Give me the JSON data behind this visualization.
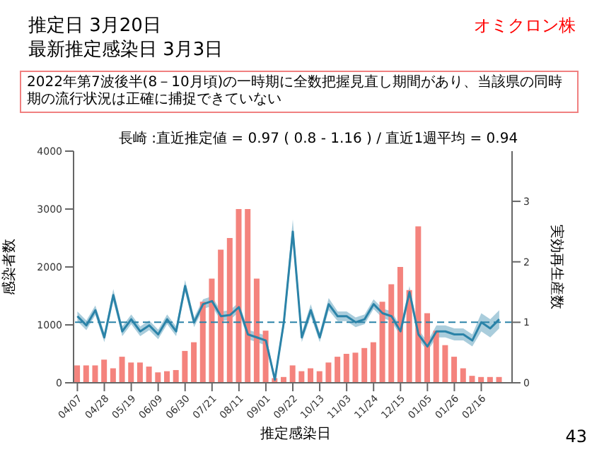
{
  "chart_data": {
    "type": "bar",
    "title": "推定日  3月20日",
    "subtitle": "最新推定感染日  3月3日",
    "annotations": [
      "オミクロン株",
      "2022年第7波後半(8－10月頃)の一時期に全数把握見直し期間があり、当該県の同時期の流行状況は正確に捕捉できていない",
      "長崎 :直近推定値 = 0.97 ( 0.8 - 1.16 ) / 直近1週平均 = 0.94",
      "43"
    ],
    "xlabel": "推定感染日",
    "ylabel": "感染者数",
    "y2label": "実効再生産数",
    "x": [
      "2022-04-07",
      "2022-04-14",
      "2022-04-21",
      "2022-04-28",
      "2022-05-05",
      "2022-05-12",
      "2022-05-19",
      "2022-05-26",
      "2022-06-02",
      "2022-06-09",
      "2022-06-16",
      "2022-06-23",
      "2022-06-30",
      "2022-07-07",
      "2022-07-14",
      "2022-07-21",
      "2022-07-28",
      "2022-08-04",
      "2022-08-11",
      "2022-08-18",
      "2022-08-25",
      "2022-09-01",
      "2022-09-08",
      "2022-09-15",
      "2022-09-22",
      "2022-09-29",
      "2022-10-06",
      "2022-10-13",
      "2022-10-20",
      "2022-10-27",
      "2022-11-03",
      "2022-11-10",
      "2022-11-17",
      "2022-11-24",
      "2022-12-01",
      "2022-12-08",
      "2022-12-15",
      "2022-12-22",
      "2022-12-29",
      "2023-01-05",
      "2023-01-12",
      "2023-01-19",
      "2023-01-26",
      "2023-02-02",
      "2023-02-09",
      "2023-02-16",
      "2023-02-23",
      "2023-03-02"
    ],
    "series": [
      {
        "color": "#f4837d",
        "values": [
          300,
          300,
          300,
          400,
          250,
          450,
          350,
          350,
          280,
          180,
          200,
          220,
          550,
          700,
          1400,
          1800,
          2300,
          2500,
          3000,
          3000,
          1800,
          900,
          80,
          100,
          300,
          200,
          250,
          200,
          350,
          450,
          500,
          520,
          600,
          700,
          1400,
          1700,
          2000,
          1600,
          2700,
          1200,
          900,
          650,
          450,
          250,
          120,
          100,
          100,
          100
        ]
      },
      {
        "type": "line",
        "axis": "y2",
        "color": "#2b83a8",
        "values": [
          1.1,
          0.95,
          1.2,
          0.75,
          1.45,
          0.85,
          1.05,
          0.85,
          0.95,
          0.8,
          1.05,
          0.85,
          1.6,
          1.0,
          1.3,
          1.35,
          1.1,
          1.12,
          1.25,
          0.8,
          0.75,
          0.7,
          0.05,
          1.0,
          2.5,
          0.75,
          1.2,
          0.75,
          1.3,
          1.1,
          1.1,
          1.0,
          1.05,
          1.3,
          1.15,
          1.1,
          0.85,
          1.5,
          0.8,
          0.6,
          0.85,
          0.85,
          0.8,
          0.8,
          0.7,
          1.0,
          0.9,
          1.05
        ],
        "lower": [
          1.02,
          0.87,
          1.12,
          0.67,
          1.35,
          0.77,
          0.97,
          0.77,
          0.87,
          0.72,
          0.97,
          0.77,
          1.5,
          0.92,
          1.22,
          1.27,
          1.02,
          1.04,
          1.17,
          0.72,
          0.67,
          0.62,
          0.01,
          0.9,
          2.3,
          0.67,
          1.1,
          0.67,
          1.2,
          1.02,
          1.02,
          0.92,
          0.97,
          1.22,
          1.07,
          1.02,
          0.77,
          1.4,
          0.72,
          0.52,
          0.75,
          0.75,
          0.7,
          0.7,
          0.6,
          0.85,
          0.75,
          0.9
        ],
        "upper": [
          1.18,
          1.03,
          1.28,
          0.83,
          1.55,
          0.93,
          1.13,
          0.93,
          1.03,
          0.88,
          1.13,
          0.93,
          1.7,
          1.08,
          1.38,
          1.43,
          1.18,
          1.2,
          1.33,
          0.88,
          0.83,
          0.78,
          0.12,
          1.1,
          2.7,
          0.83,
          1.3,
          0.83,
          1.4,
          1.18,
          1.18,
          1.08,
          1.13,
          1.38,
          1.23,
          1.18,
          0.93,
          1.6,
          0.88,
          0.68,
          0.95,
          0.95,
          0.9,
          0.9,
          0.8,
          1.15,
          1.05,
          1.2
        ]
      }
    ],
    "xlim": [
      "2022-04-04",
      "2023-03-12"
    ],
    "xticks": [
      {
        "value": "2022-04-07",
        "label": "04/07"
      },
      {
        "value": "2022-04-28",
        "label": "04/28"
      },
      {
        "value": "2022-05-19",
        "label": "05/19"
      },
      {
        "value": "2022-06-09",
        "label": "06/09"
      },
      {
        "value": "2022-06-30",
        "label": "06/30"
      },
      {
        "value": "2022-07-21",
        "label": "07/21"
      },
      {
        "value": "2022-08-11",
        "label": "08/11"
      },
      {
        "value": "2022-09-01",
        "label": "09/01"
      },
      {
        "value": "2022-09-22",
        "label": "09/22"
      },
      {
        "value": "2022-10-13",
        "label": "10/13"
      },
      {
        "value": "2022-11-03",
        "label": "11/03"
      },
      {
        "value": "2022-11-24",
        "label": "11/24"
      },
      {
        "value": "2022-12-15",
        "label": "12/15"
      },
      {
        "value": "2023-01-05",
        "label": "01/05"
      },
      {
        "value": "2023-01-26",
        "label": "01/26"
      },
      {
        "value": "2023-02-16",
        "label": "02/16"
      }
    ],
    "ylim": [
      0,
      4000
    ],
    "yticks": [
      0,
      1000,
      2000,
      3000,
      4000
    ],
    "y2lim": [
      0,
      3.83
    ],
    "y2ticks": [
      0,
      1,
      2,
      3
    ],
    "ref_lines": [
      {
        "axis": "y2",
        "value": 1,
        "color": "#2b83a8",
        "line_style": "dashed"
      }
    ],
    "grid": false,
    "legend": false
  }
}
